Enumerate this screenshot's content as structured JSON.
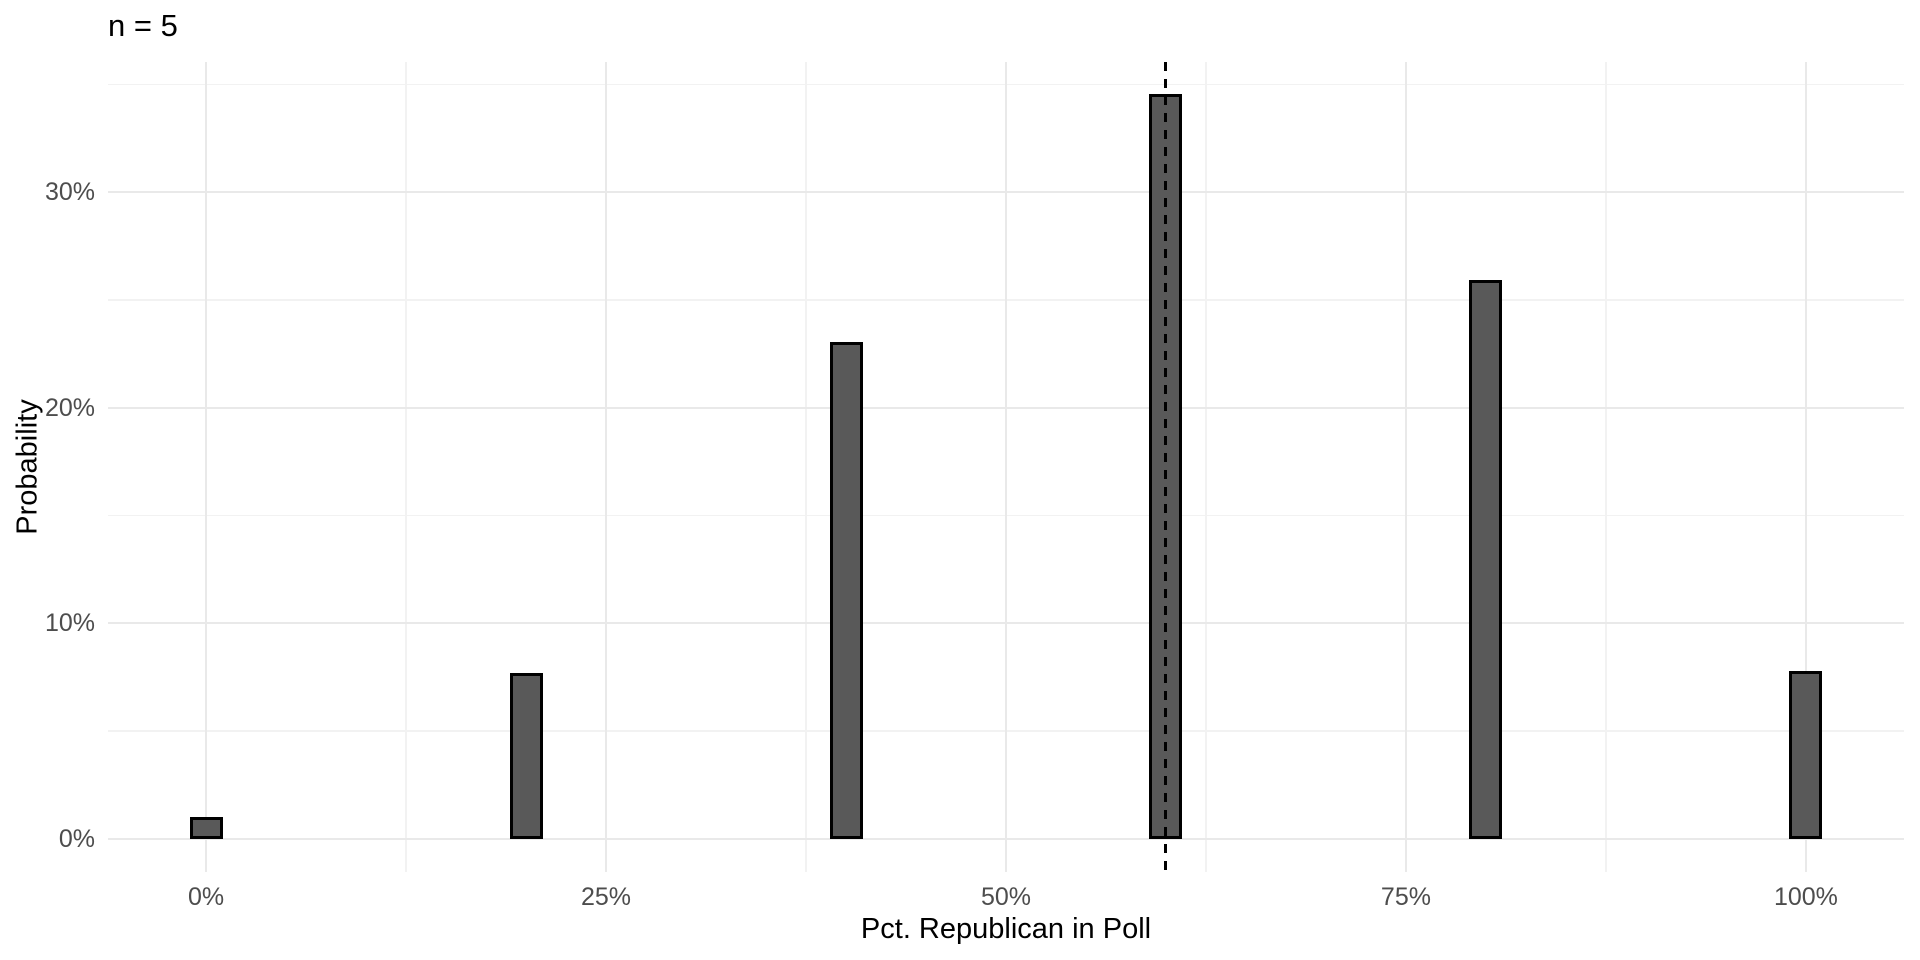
{
  "chart_data": {
    "type": "bar",
    "title": "n = 5",
    "xlabel": "Pct. Republican in Poll",
    "ylabel": "Probability",
    "x": [
      0,
      20,
      40,
      60,
      80,
      100
    ],
    "values": [
      1.02,
      7.68,
      23.04,
      34.56,
      25.92,
      7.78
    ],
    "value_unit": "percent_probability",
    "bar_width_x": 2,
    "vline": {
      "x": 60,
      "style": "dashed",
      "color": "#000000"
    },
    "x_ticks": {
      "values": [
        0,
        25,
        50,
        75,
        100
      ],
      "labels": [
        "0%",
        "25%",
        "50%",
        "75%",
        "100%"
      ]
    },
    "y_ticks": {
      "values": [
        0,
        10,
        20,
        30
      ],
      "labels": [
        "0%",
        "10%",
        "20%",
        "30%"
      ]
    },
    "x_minor_ticks": [
      12.5,
      37.5,
      62.5,
      87.5
    ],
    "y_minor_ticks": [
      5,
      15,
      25,
      35
    ],
    "xlim": [
      -6.13,
      106.13
    ],
    "ylim": [
      -1.55,
      36.05
    ],
    "grid": true,
    "legend": "none",
    "colors": {
      "bar_fill": "#595959",
      "bar_border": "#000000",
      "grid_major": "#E9E9E9",
      "grid_minor": "#F2F2F2",
      "axis_text": "#4D4D4D",
      "axis_title": "#000000",
      "title": "#000000",
      "vline": "#000000",
      "background": "#FFFFFF"
    }
  }
}
